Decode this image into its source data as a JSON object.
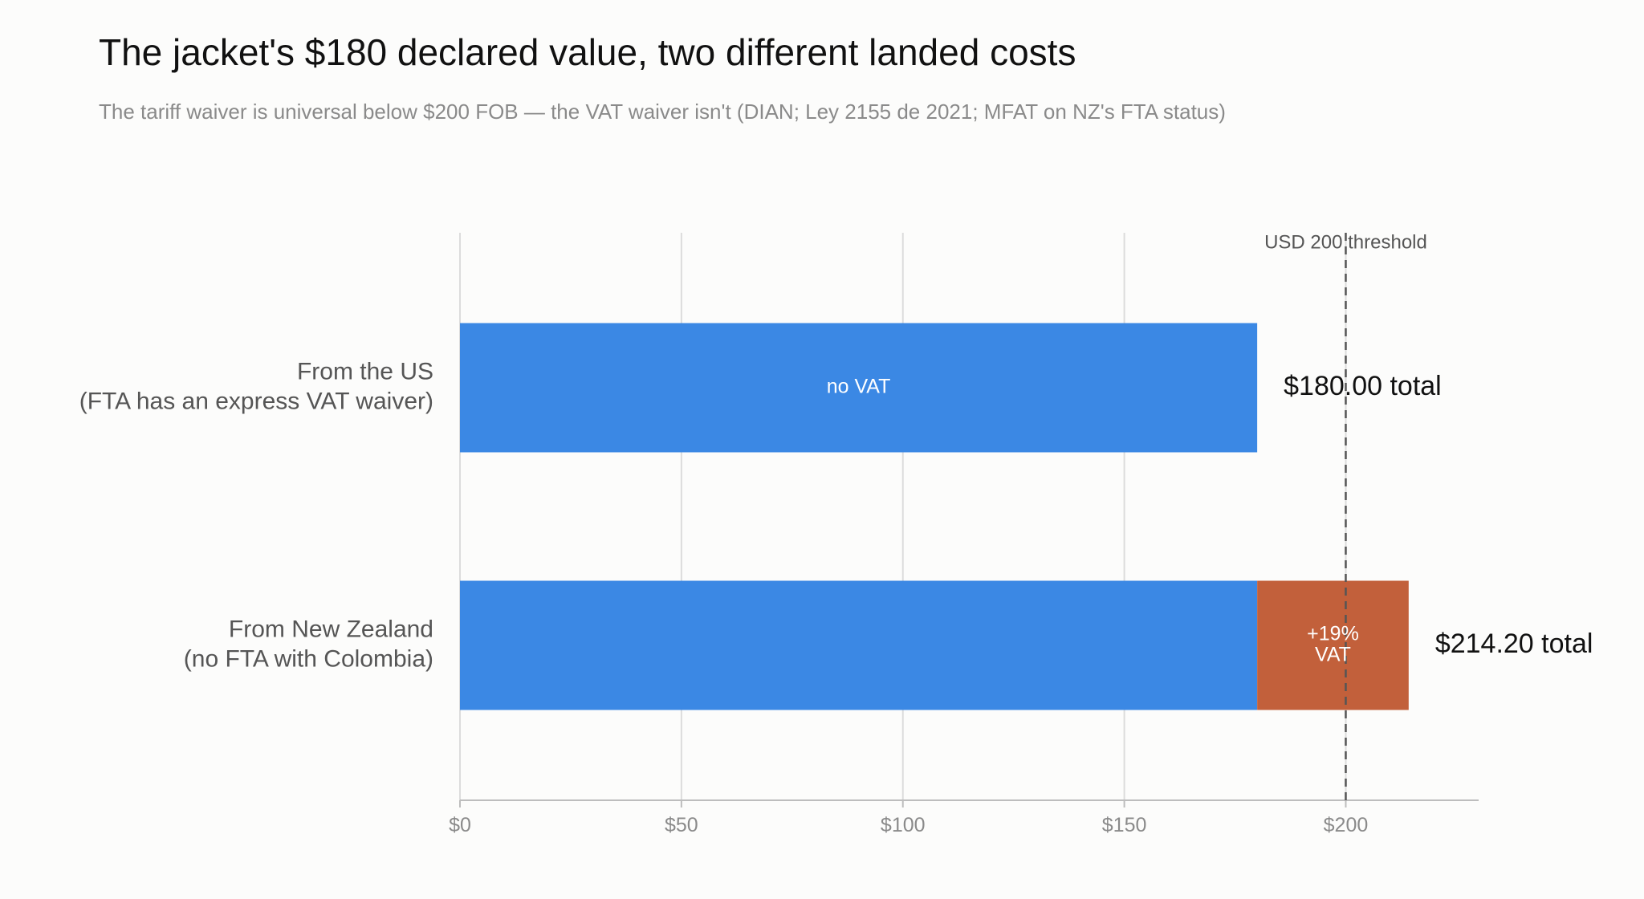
{
  "chart_data": {
    "type": "bar",
    "orientation": "horizontal",
    "stacked": true,
    "title": "The jacket's $180 declared value, two different landed costs",
    "subtitle": "The tariff waiver is universal below $200 FOB — the VAT waiver isn't (DIAN; Ley 2155 de 2021; MFAT on NZ's FTA status)",
    "categories": [
      [
        "From the US",
        "(FTA has an express VAT waiver)"
      ],
      [
        "From New Zealand",
        "(no FTA with Colombia)"
      ]
    ],
    "series": [
      {
        "key": "base",
        "values": [
          180,
          180
        ],
        "labels": [
          [
            "no VAT"
          ],
          null
        ],
        "color": "#3b88e4"
      },
      {
        "key": "vat",
        "values": [
          0,
          34.2
        ],
        "labels": [
          null,
          [
            "+19%",
            "VAT"
          ]
        ],
        "color": "#c2603b"
      }
    ],
    "totals": [
      "$180.00 total",
      "$214.20 total"
    ],
    "xlim": [
      0,
      230
    ],
    "xticks": [
      0,
      50,
      100,
      150,
      200
    ],
    "xtick_labels": [
      "$0",
      "$50",
      "$100",
      "$150",
      "$200"
    ],
    "reference_line": {
      "x": 200,
      "label": "USD 200 threshold",
      "style": "dashed"
    },
    "grid": {
      "x": true,
      "y": false
    },
    "legend": "none"
  }
}
